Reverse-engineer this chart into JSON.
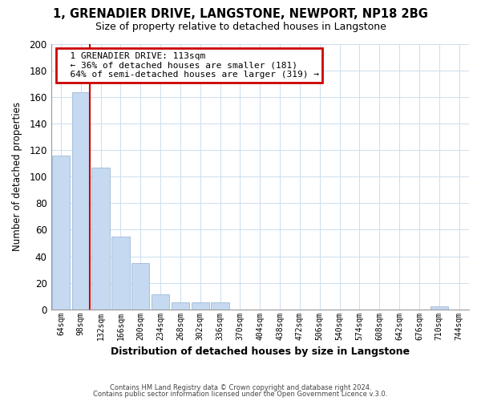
{
  "title": "1, GRENADIER DRIVE, LANGSTONE, NEWPORT, NP18 2BG",
  "subtitle": "Size of property relative to detached houses in Langstone",
  "xlabel": "Distribution of detached houses by size in Langstone",
  "ylabel": "Number of detached properties",
  "bar_color": "#c5d9f0",
  "bar_edge_color": "#a0bbd8",
  "categories": [
    "64sqm",
    "98sqm",
    "132sqm",
    "166sqm",
    "200sqm",
    "234sqm",
    "268sqm",
    "302sqm",
    "336sqm",
    "370sqm",
    "404sqm",
    "438sqm",
    "472sqm",
    "506sqm",
    "540sqm",
    "574sqm",
    "608sqm",
    "642sqm",
    "676sqm",
    "710sqm",
    "744sqm"
  ],
  "values": [
    116,
    164,
    107,
    55,
    35,
    11,
    5,
    5,
    5,
    0,
    0,
    0,
    0,
    0,
    0,
    0,
    0,
    0,
    0,
    2,
    0
  ],
  "ylim": [
    0,
    200
  ],
  "yticks": [
    0,
    20,
    40,
    60,
    80,
    100,
    120,
    140,
    160,
    180,
    200
  ],
  "vline_bin_index": 1,
  "annotation_title": "1 GRENADIER DRIVE: 113sqm",
  "annotation_line1": "← 36% of detached houses are smaller (181)",
  "annotation_line2": "64% of semi-detached houses are larger (319) →",
  "footer1": "Contains HM Land Registry data © Crown copyright and database right 2024.",
  "footer2": "Contains public sector information licensed under the Open Government Licence v.3.0.",
  "background_color": "#ffffff",
  "plot_bg_color": "#ffffff",
  "annotation_box_color": "#ffffff",
  "annotation_box_edge": "#cc0000",
  "vline_color": "#cc0000",
  "grid_color": "#ccddee"
}
